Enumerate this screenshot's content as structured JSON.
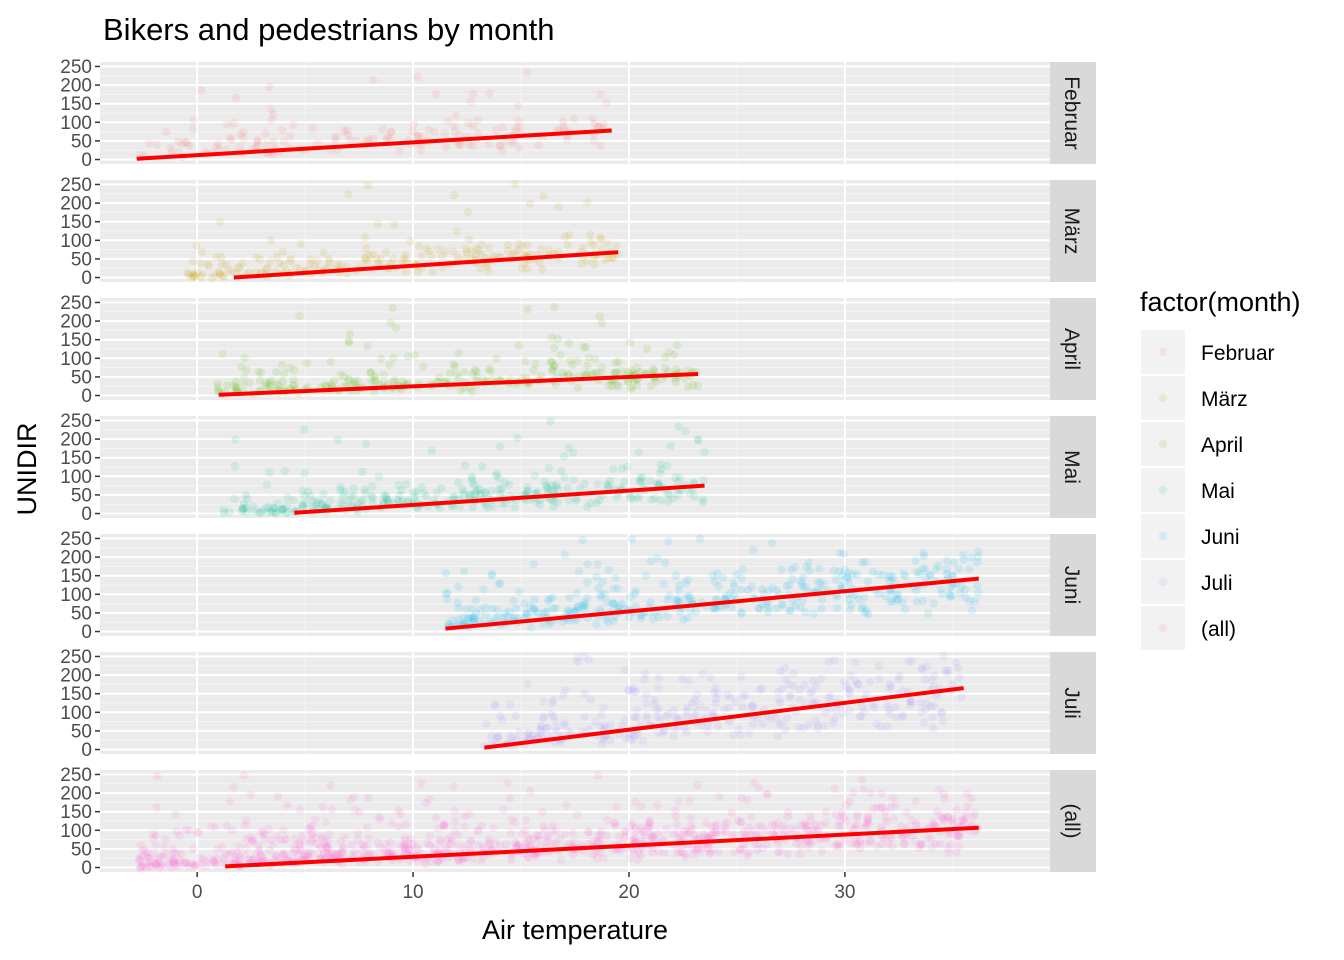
{
  "chart_data": {
    "type": "scatter",
    "title": "Bikers and pedestrians by month",
    "xlabel": "Air temperature",
    "ylabel": "UNIDIR",
    "xlim": [
      -4.5,
      39.5
    ],
    "ylim": [
      -12,
      262
    ],
    "x_ticks": [
      0,
      10,
      20,
      30
    ],
    "y_ticks": [
      0,
      50,
      100,
      150,
      200,
      250
    ],
    "grid": true,
    "legend": {
      "title": "factor(month)",
      "placement": "right",
      "entries": [
        "Februar",
        "März",
        "April",
        "Mai",
        "Juni",
        "Juli",
        "(all)"
      ]
    },
    "fit_line_color": "#FF0000",
    "facets": [
      {
        "name": "Februar",
        "color": "#F8766D",
        "x_range": [
          -2.8,
          19.2
        ],
        "fit_line": {
          "x": [
            -2.8,
            19.2
          ],
          "y": [
            2,
            78
          ]
        },
        "point_density": 160,
        "y_spread": 60
      },
      {
        "name": "März",
        "color": "#C49A00",
        "x_range": [
          -0.5,
          19.5
        ],
        "fit_line": {
          "x": [
            1.7,
            19.5
          ],
          "y": [
            0,
            68
          ]
        },
        "point_density": 220,
        "y_spread": 55
      },
      {
        "name": "April",
        "color": "#53B400",
        "x_range": [
          0.9,
          23.2
        ],
        "fit_line": {
          "x": [
            1.0,
            23.2
          ],
          "y": [
            2,
            58
          ]
        },
        "point_density": 300,
        "y_spread": 45
      },
      {
        "name": "Mai",
        "color": "#00C094",
        "x_range": [
          1.2,
          23.5
        ],
        "fit_line": {
          "x": [
            4.5,
            23.5
          ],
          "y": [
            2,
            75
          ]
        },
        "point_density": 320,
        "y_spread": 55
      },
      {
        "name": "Juni",
        "color": "#00B6EB",
        "x_range": [
          11.5,
          36.2
        ],
        "fit_line": {
          "x": [
            11.5,
            36.2
          ],
          "y": [
            8,
            142
          ]
        },
        "point_density": 420,
        "y_spread": 70
      },
      {
        "name": "Juli",
        "color": "#A58AFF",
        "x_range": [
          13.3,
          35.5
        ],
        "fit_line": {
          "x": [
            13.3,
            35.5
          ],
          "y": [
            5,
            165
          ]
        },
        "point_density": 340,
        "y_spread": 90
      },
      {
        "name": "(all)",
        "color": "#FB61D7",
        "x_range": [
          -2.8,
          36.2
        ],
        "fit_line": {
          "x": [
            1.3,
            36.2
          ],
          "y": [
            3,
            107
          ]
        },
        "point_density": 900,
        "y_spread": 70
      }
    ]
  }
}
